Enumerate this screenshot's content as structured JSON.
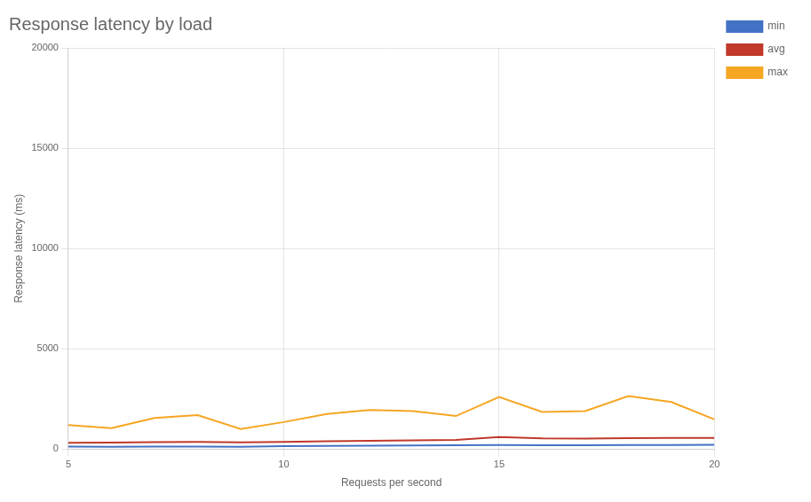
{
  "chart_data": {
    "type": "line",
    "title": "Response latency by load",
    "xlabel": "Requests per second",
    "ylabel": "Response latency (ms)",
    "x": [
      5,
      6,
      7,
      8,
      9,
      10,
      11,
      12,
      13,
      14,
      15,
      16,
      17,
      18,
      19,
      20
    ],
    "series": [
      {
        "name": "min",
        "color": "#4472c4",
        "values": [
          130,
          120,
          130,
          125,
          120,
          150,
          160,
          175,
          180,
          190,
          210,
          200,
          195,
          205,
          210,
          215
        ]
      },
      {
        "name": "avg",
        "color": "#c0392b",
        "values": [
          320,
          330,
          350,
          360,
          340,
          360,
          390,
          420,
          440,
          460,
          600,
          540,
          530,
          545,
          555,
          560
        ]
      },
      {
        "name": "max",
        "color": "#f5a623",
        "values": [
          1200,
          1050,
          1550,
          1700,
          1000,
          1350,
          1750,
          1950,
          1900,
          1650,
          2600,
          1850,
          1900,
          2650,
          2350,
          1480
        ]
      }
    ],
    "xlim": [
      5,
      20
    ],
    "xticks": [
      5,
      10,
      15,
      20
    ],
    "ylim": [
      0,
      20000
    ],
    "yticks": [
      0,
      5000,
      10000,
      15000,
      20000
    ],
    "grid": true,
    "legend": "right"
  }
}
